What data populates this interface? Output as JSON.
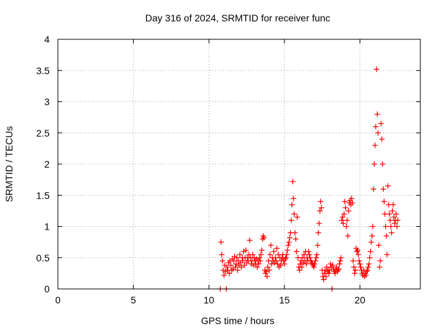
{
  "chart_data": {
    "type": "scatter",
    "title": "Day 316 of 2024, SRMTID for receiver func",
    "xlabel": "GPS time / hours",
    "ylabel": "SRMTID / TECUs",
    "xlim": [
      0,
      24
    ],
    "ylim": [
      0,
      4
    ],
    "xticks": [
      0,
      5,
      10,
      15,
      20
    ],
    "xtick_labels": [
      "0",
      "5",
      "10",
      "15",
      "20"
    ],
    "yticks": [
      0,
      0.5,
      1,
      1.5,
      2,
      2.5,
      3,
      3.5,
      4
    ],
    "ytick_labels": [
      "0",
      "0.5",
      "1",
      "1.5",
      "2",
      "2.5",
      "3",
      "3.5",
      "4"
    ],
    "grid": true,
    "marker": "+",
    "marker_color": "#ff0000",
    "series": [
      {
        "name": "SRMTID",
        "points": [
          [
            10.75,
            0.0
          ],
          [
            10.8,
            0.75
          ],
          [
            10.85,
            0.55
          ],
          [
            10.9,
            0.45
          ],
          [
            10.95,
            0.3
          ],
          [
            11.0,
            0.22
          ],
          [
            11.05,
            0.38
          ],
          [
            11.1,
            0.28
          ],
          [
            11.15,
            0.0
          ],
          [
            11.2,
            0.35
          ],
          [
            11.25,
            0.3
          ],
          [
            11.3,
            0.42
          ],
          [
            11.35,
            0.25
          ],
          [
            11.4,
            0.45
          ],
          [
            11.45,
            0.38
          ],
          [
            11.5,
            0.3
          ],
          [
            11.55,
            0.48
          ],
          [
            11.6,
            0.32
          ],
          [
            11.65,
            0.45
          ],
          [
            11.7,
            0.52
          ],
          [
            11.75,
            0.35
          ],
          [
            11.8,
            0.4
          ],
          [
            11.85,
            0.5
          ],
          [
            11.9,
            0.3
          ],
          [
            11.95,
            0.45
          ],
          [
            12.0,
            0.38
          ],
          [
            12.05,
            0.55
          ],
          [
            12.1,
            0.42
          ],
          [
            12.15,
            0.35
          ],
          [
            12.2,
            0.5
          ],
          [
            12.25,
            0.45
          ],
          [
            12.3,
            0.6
          ],
          [
            12.35,
            0.38
          ],
          [
            12.4,
            0.5
          ],
          [
            12.45,
            0.62
          ],
          [
            12.5,
            0.42
          ],
          [
            12.55,
            0.5
          ],
          [
            12.6,
            0.45
          ],
          [
            12.65,
            0.55
          ],
          [
            12.7,
            0.78
          ],
          [
            12.75,
            0.5
          ],
          [
            12.8,
            0.4
          ],
          [
            12.85,
            0.45
          ],
          [
            12.9,
            0.55
          ],
          [
            12.95,
            0.38
          ],
          [
            13.0,
            0.5
          ],
          [
            13.05,
            0.45
          ],
          [
            13.1,
            0.4
          ],
          [
            13.15,
            0.48
          ],
          [
            13.2,
            0.35
          ],
          [
            13.25,
            0.45
          ],
          [
            13.3,
            0.4
          ],
          [
            13.35,
            0.5
          ],
          [
            13.4,
            0.45
          ],
          [
            13.45,
            0.55
          ],
          [
            13.5,
            0.62
          ],
          [
            13.55,
            0.8
          ],
          [
            13.6,
            0.85
          ],
          [
            13.65,
            0.82
          ],
          [
            13.7,
            0.3
          ],
          [
            13.75,
            0.25
          ],
          [
            13.8,
            0.28
          ],
          [
            13.85,
            0.2
          ],
          [
            13.9,
            0.35
          ],
          [
            13.95,
            0.45
          ],
          [
            14.0,
            0.3
          ],
          [
            14.05,
            0.55
          ],
          [
            14.1,
            0.7
          ],
          [
            14.15,
            0.4
          ],
          [
            14.2,
            0.5
          ],
          [
            14.25,
            0.45
          ],
          [
            14.3,
            0.6
          ],
          [
            14.35,
            0.42
          ],
          [
            14.4,
            0.5
          ],
          [
            14.45,
            0.45
          ],
          [
            14.5,
            0.65
          ],
          [
            14.55,
            0.4
          ],
          [
            14.6,
            0.55
          ],
          [
            14.65,
            0.35
          ],
          [
            14.7,
            0.5
          ],
          [
            14.75,
            0.38
          ],
          [
            14.8,
            0.45
          ],
          [
            14.85,
            0.5
          ],
          [
            14.9,
            0.55
          ],
          [
            14.95,
            0.45
          ],
          [
            15.0,
            0.4
          ],
          [
            15.05,
            0.48
          ],
          [
            15.1,
            0.5
          ],
          [
            15.15,
            0.55
          ],
          [
            15.2,
            0.62
          ],
          [
            15.25,
            0.7
          ],
          [
            15.3,
            0.75
          ],
          [
            15.35,
            0.82
          ],
          [
            15.4,
            0.9
          ],
          [
            15.45,
            1.1
          ],
          [
            15.5,
            1.35
          ],
          [
            15.55,
            1.72
          ],
          [
            15.6,
            1.45
          ],
          [
            15.65,
            1.2
          ],
          [
            15.7,
            0.9
          ],
          [
            15.75,
            0.8
          ],
          [
            15.8,
            0.6
          ],
          [
            15.85,
            1.15
          ],
          [
            15.9,
            0.5
          ],
          [
            15.95,
            0.35
          ],
          [
            16.0,
            0.3
          ],
          [
            16.05,
            0.4
          ],
          [
            16.1,
            0.45
          ],
          [
            16.15,
            0.35
          ],
          [
            16.2,
            0.5
          ],
          [
            16.25,
            0.42
          ],
          [
            16.3,
            0.55
          ],
          [
            16.35,
            0.45
          ],
          [
            16.4,
            0.6
          ],
          [
            16.45,
            0.4
          ],
          [
            16.5,
            0.5
          ],
          [
            16.55,
            0.45
          ],
          [
            16.6,
            0.6
          ],
          [
            16.65,
            0.55
          ],
          [
            16.7,
            0.5
          ],
          [
            16.75,
            0.45
          ],
          [
            16.8,
            0.42
          ],
          [
            16.85,
            0.4
          ],
          [
            16.9,
            0.38
          ],
          [
            16.95,
            0.35
          ],
          [
            17.0,
            0.4
          ],
          [
            17.05,
            0.45
          ],
          [
            17.1,
            0.5
          ],
          [
            17.15,
            0.55
          ],
          [
            17.2,
            0.7
          ],
          [
            17.25,
            0.9
          ],
          [
            17.3,
            1.05
          ],
          [
            17.35,
            1.25
          ],
          [
            17.4,
            1.4
          ],
          [
            17.45,
            1.3
          ],
          [
            17.5,
            0.3
          ],
          [
            17.55,
            0.2
          ],
          [
            17.6,
            0.15
          ],
          [
            17.65,
            0.25
          ],
          [
            17.7,
            0.3
          ],
          [
            17.75,
            0.2
          ],
          [
            17.8,
            0.35
          ],
          [
            17.85,
            0.28
          ],
          [
            17.9,
            0.3
          ],
          [
            17.95,
            0.25
          ],
          [
            18.0,
            0.3
          ],
          [
            18.05,
            0.4
          ],
          [
            18.1,
            0.35
          ],
          [
            18.15,
            0.0
          ],
          [
            18.2,
            0.38
          ],
          [
            18.25,
            0.32
          ],
          [
            18.3,
            0.28
          ],
          [
            18.35,
            0.25
          ],
          [
            18.4,
            0.3
          ],
          [
            18.45,
            0.35
          ],
          [
            18.5,
            0.28
          ],
          [
            18.55,
            0.3
          ],
          [
            18.6,
            0.32
          ],
          [
            18.65,
            0.4
          ],
          [
            18.7,
            0.45
          ],
          [
            18.75,
            0.5
          ],
          [
            18.8,
            1.1
          ],
          [
            18.85,
            1.15
          ],
          [
            18.9,
            1.05
          ],
          [
            18.95,
            1.2
          ],
          [
            19.0,
            1.4
          ],
          [
            19.05,
            1.3
          ],
          [
            19.1,
            1.0
          ],
          [
            19.15,
            1.1
          ],
          [
            19.2,
            0.85
          ],
          [
            19.25,
            1.25
          ],
          [
            19.3,
            1.38
          ],
          [
            19.35,
            1.42
          ],
          [
            19.4,
            1.35
          ],
          [
            19.45,
            1.45
          ],
          [
            19.5,
            1.38
          ],
          [
            19.55,
            0.45
          ],
          [
            19.6,
            0.35
          ],
          [
            19.65,
            0.25
          ],
          [
            19.7,
            0.3
          ],
          [
            19.75,
            0.65
          ],
          [
            19.8,
            0.6
          ],
          [
            19.85,
            0.62
          ],
          [
            19.9,
            0.55
          ],
          [
            19.95,
            0.45
          ],
          [
            20.0,
            0.4
          ],
          [
            20.05,
            0.35
          ],
          [
            20.1,
            0.3
          ],
          [
            20.15,
            0.25
          ],
          [
            20.2,
            0.22
          ],
          [
            20.25,
            0.3
          ],
          [
            20.3,
            0.2
          ],
          [
            20.35,
            0.25
          ],
          [
            20.4,
            0.22
          ],
          [
            20.45,
            0.28
          ],
          [
            20.5,
            0.3
          ],
          [
            20.55,
            0.35
          ],
          [
            20.6,
            0.4
          ],
          [
            20.65,
            0.5
          ],
          [
            20.7,
            0.6
          ],
          [
            20.75,
            0.75
          ],
          [
            20.8,
            0.85
          ],
          [
            20.85,
            1.0
          ],
          [
            20.9,
            1.6
          ],
          [
            20.95,
            2.0
          ],
          [
            21.0,
            2.3
          ],
          [
            21.05,
            2.6
          ],
          [
            21.1,
            3.52
          ],
          [
            21.15,
            2.8
          ],
          [
            21.2,
            2.5
          ],
          [
            21.25,
            0.7
          ],
          [
            21.3,
            0.35
          ],
          [
            21.35,
            0.45
          ],
          [
            21.4,
            2.65
          ],
          [
            21.45,
            2.4
          ],
          [
            21.5,
            2.0
          ],
          [
            21.55,
            1.6
          ],
          [
            21.6,
            1.4
          ],
          [
            21.65,
            1.2
          ],
          [
            21.7,
            1.0
          ],
          [
            21.75,
            0.85
          ],
          [
            21.8,
            0.55
          ],
          [
            21.85,
            1.65
          ],
          [
            21.9,
            1.35
          ],
          [
            21.95,
            1.2
          ],
          [
            22.0,
            1.1
          ],
          [
            22.05,
            1.0
          ],
          [
            22.1,
            0.9
          ],
          [
            22.15,
            1.25
          ],
          [
            22.2,
            1.35
          ],
          [
            22.25,
            1.15
          ],
          [
            22.3,
            1.05
          ],
          [
            22.35,
            1.1
          ],
          [
            22.4,
            1.2
          ],
          [
            22.45,
            1.0
          ],
          [
            22.5,
            1.1
          ]
        ]
      }
    ]
  }
}
